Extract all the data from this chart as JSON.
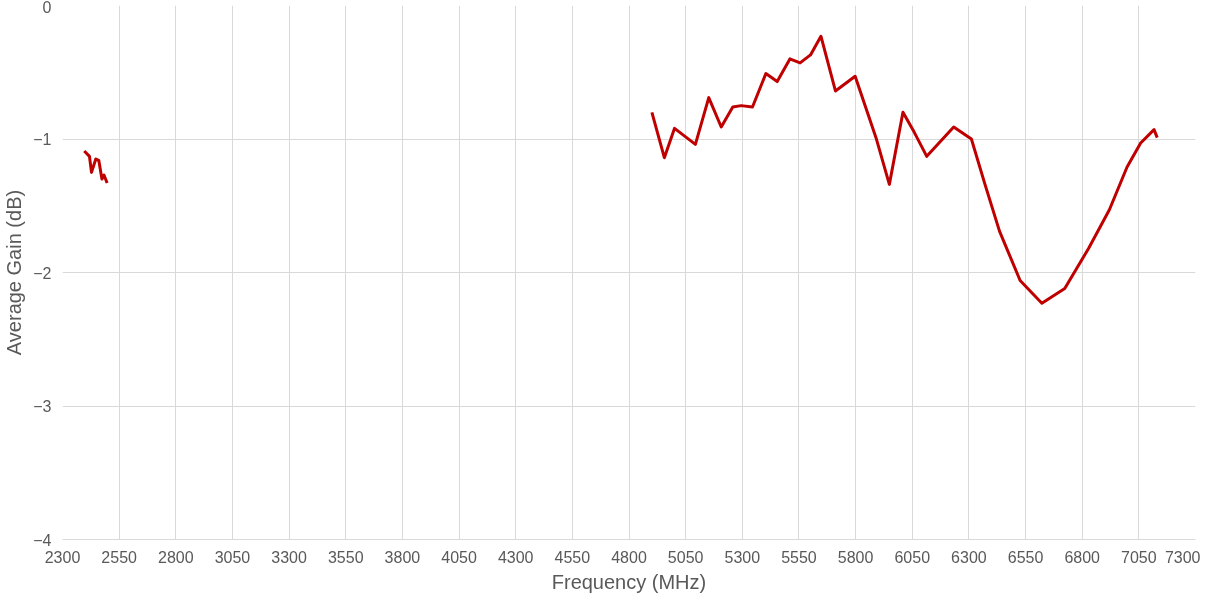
{
  "chart_data": {
    "type": "line",
    "xlabel": "Frequency (MHz)",
    "ylabel": "Average Gain (dB)",
    "x": [
      2396,
      2419,
      2428,
      2447,
      2460,
      2474,
      2483,
      2497,
      2700,
      4901,
      4956,
      5001,
      5093,
      5152,
      5207,
      5258,
      5295,
      5345,
      5404,
      5454,
      5510,
      5555,
      5601,
      5647,
      5711,
      5798,
      5890,
      5949,
      6009,
      6059,
      6114,
      6233,
      6311,
      6371,
      6435,
      6526,
      6622,
      6723,
      6828,
      6920,
      6998,
      7058,
      7117,
      7131
    ],
    "series": [
      {
        "color": "#c00000",
        "values": [
          -1.09,
          -1.13,
          -1.25,
          -1.15,
          -1.16,
          -1.3,
          -1.27,
          -1.33,
          null,
          -0.8,
          -1.14,
          -0.92,
          -1.04,
          -0.69,
          -0.91,
          -0.76,
          -0.75,
          -0.76,
          -0.51,
          -0.57,
          -0.4,
          -0.43,
          -0.37,
          -0.23,
          -0.64,
          -0.53,
          -0.99,
          -1.34,
          -0.8,
          -0.95,
          -1.13,
          -0.91,
          -1.0,
          -1.34,
          -1.69,
          -2.06,
          -2.23,
          -2.12,
          -1.82,
          -1.53,
          -1.21,
          -1.03,
          -0.93,
          -0.99
        ]
      }
    ],
    "xlim": [
      2300,
      7300
    ],
    "xticks": [
      2300,
      2550,
      2800,
      3050,
      3300,
      3550,
      3800,
      4050,
      4300,
      4550,
      4800,
      5050,
      5300,
      5550,
      5800,
      6050,
      6300,
      6550,
      6800,
      7050,
      7300
    ],
    "ylim": [
      -4,
      0
    ],
    "yticks": [
      -4,
      -3,
      -2,
      -1,
      0
    ],
    "grid": true,
    "line_style": "solid",
    "marker": "none"
  }
}
